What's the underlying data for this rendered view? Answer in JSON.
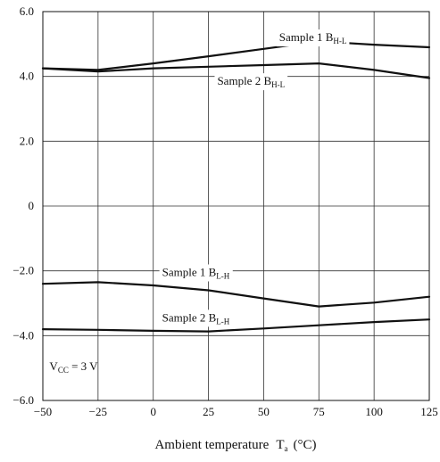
{
  "chart_data": {
    "type": "line",
    "xlabel": "Ambient temperature",
    "xlabel_symbol": "T",
    "xlabel_symbol_sub": "a",
    "xlabel_unit": "(°C)",
    "xlim": [
      -50,
      125
    ],
    "ylim": [
      -6.0,
      6.0
    ],
    "x_ticks": [
      {
        "value": -50,
        "label": "−50"
      },
      {
        "value": -25,
        "label": "−25"
      },
      {
        "value": 0,
        "label": "0"
      },
      {
        "value": 25,
        "label": "25"
      },
      {
        "value": 50,
        "label": "50"
      },
      {
        "value": 75,
        "label": "75"
      },
      {
        "value": 100,
        "label": "100"
      },
      {
        "value": 125,
        "label": "125"
      }
    ],
    "y_ticks": [
      {
        "value": 6.0,
        "label": "6.0"
      },
      {
        "value": 4.0,
        "label": "4.0"
      },
      {
        "value": 2.0,
        "label": "2.0"
      },
      {
        "value": 0,
        "label": "0"
      },
      {
        "value": -2.0,
        "label": "−2.0"
      },
      {
        "value": -4.0,
        "label": "−4.0"
      },
      {
        "value": -6.0,
        "label": "−6.0"
      }
    ],
    "x_grid": [
      -25,
      0,
      25,
      50,
      75,
      100
    ],
    "y_grid": [
      4.0,
      2.0,
      0,
      -2.0,
      -4.0
    ],
    "series": [
      {
        "name": "Sample 1 B_H-L",
        "label_main": "Sample 1  B",
        "label_sub": "H-L",
        "label_at": {
          "x": 57,
          "y": 5.2
        },
        "x": [
          -50,
          -25,
          0,
          25,
          50,
          75,
          100,
          125
        ],
        "y": [
          4.25,
          4.2,
          4.4,
          4.62,
          4.85,
          5.08,
          4.98,
          4.9
        ]
      },
      {
        "name": "Sample 2 B_H-L",
        "label_main": "Sample 2  B",
        "label_sub": "H-L",
        "label_at": {
          "x": 29,
          "y": 3.85
        },
        "x": [
          -50,
          -25,
          0,
          25,
          50,
          75,
          100,
          125
        ],
        "y": [
          4.25,
          4.15,
          4.25,
          4.3,
          4.35,
          4.4,
          4.2,
          3.95
        ]
      },
      {
        "name": "Sample 1 B_L-H",
        "label_main": "Sample 1  B",
        "label_sub": "L-H",
        "label_at": {
          "x": 4,
          "y": -2.05
        },
        "x": [
          -50,
          -25,
          0,
          25,
          50,
          75,
          100,
          125
        ],
        "y": [
          -2.4,
          -2.35,
          -2.45,
          -2.6,
          -2.85,
          -3.1,
          -2.98,
          -2.8
        ]
      },
      {
        "name": "Sample 2 B_L-H",
        "label_main": "Sample 2  B",
        "label_sub": "L-H",
        "label_at": {
          "x": 4,
          "y": -3.45
        },
        "x": [
          -50,
          -25,
          0,
          25,
          50,
          75,
          100,
          125
        ],
        "y": [
          -3.8,
          -3.82,
          -3.85,
          -3.87,
          -3.78,
          -3.68,
          -3.58,
          -3.5
        ]
      }
    ],
    "annotation": {
      "main": "V",
      "sub": "CC",
      "tail": " = 3 V",
      "at": {
        "x": -47,
        "y": -4.95
      }
    }
  }
}
